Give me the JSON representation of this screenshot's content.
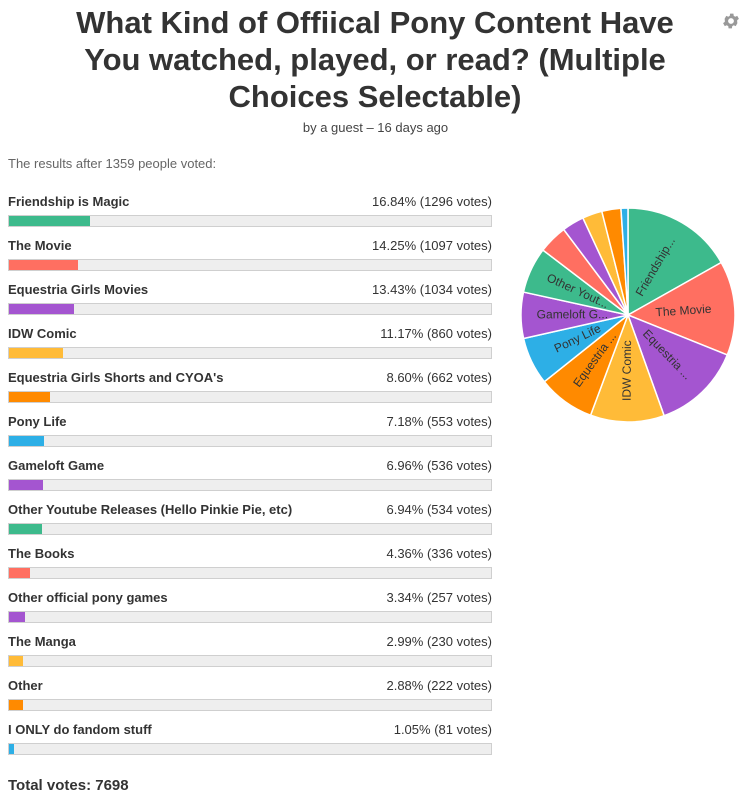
{
  "poll": {
    "title_lines": [
      "What Kind of Offiical Pony Content Have",
      "You watched, played, or read? (Multiple",
      "Choices Selectable)"
    ],
    "byline": "by a guest – 16 days ago",
    "intro": "The results after 1359 people voted:",
    "total": "Total votes: 7698",
    "gear_icon": "gear-icon"
  },
  "chart_data": {
    "type": "pie",
    "colors": [
      "#3dba8c",
      "#ff6f61",
      "#a455d0",
      "#ffbb38",
      "#ff8a00",
      "#2dafe6",
      "#a455d0",
      "#3dba8c",
      "#ff6f61",
      "#a455d0",
      "#ffbb38",
      "#ff8a00",
      "#2dafe6"
    ],
    "options": [
      {
        "label": "Friendship is Magic",
        "pct": "16.84% (1296 votes)",
        "votes": 1296,
        "pie_label": "Friendship..."
      },
      {
        "label": "The Movie",
        "pct": "14.25% (1097 votes)",
        "votes": 1097,
        "pie_label": "The Movie"
      },
      {
        "label": "Equestria Girls Movies",
        "pct": "13.43% (1034 votes)",
        "votes": 1034,
        "pie_label": "Equestria ..."
      },
      {
        "label": "IDW Comic",
        "pct": "11.17% (860 votes)",
        "votes": 860,
        "pie_label": "IDW Comic"
      },
      {
        "label": "Equestria Girls Shorts and CYOA's",
        "pct": "8.60% (662 votes)",
        "votes": 662,
        "pie_label": "Equestria ..."
      },
      {
        "label": "Pony Life",
        "pct": "7.18% (553 votes)",
        "votes": 553,
        "pie_label": "Pony Life"
      },
      {
        "label": "Gameloft Game",
        "pct": "6.96% (536 votes)",
        "votes": 536,
        "pie_label": "Gameloft G..."
      },
      {
        "label": "Other Youtube Releases (Hello Pinkie Pie, etc)",
        "pct": "6.94% (534 votes)",
        "votes": 534,
        "pie_label": "Other Yout..."
      },
      {
        "label": "The Books",
        "pct": "4.36% (336 votes)",
        "votes": 336,
        "pie_label": ""
      },
      {
        "label": "Other official pony games",
        "pct": "3.34% (257 votes)",
        "votes": 257,
        "pie_label": ""
      },
      {
        "label": "The Manga",
        "pct": "2.99% (230 votes)",
        "votes": 230,
        "pie_label": ""
      },
      {
        "label": "Other",
        "pct": "2.88% (222 votes)",
        "votes": 222,
        "pie_label": ""
      },
      {
        "label": "I ONLY do fandom stuff",
        "pct": "1.05% (81 votes)",
        "votes": 81,
        "pie_label": ""
      }
    ]
  }
}
